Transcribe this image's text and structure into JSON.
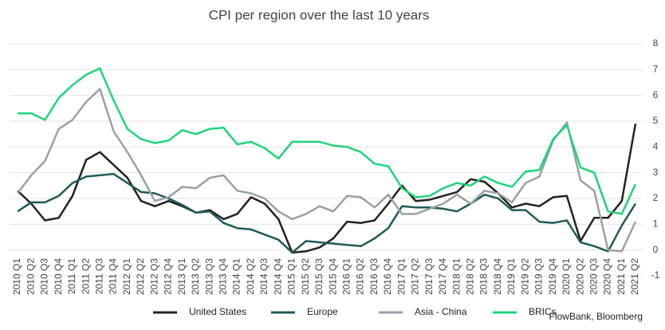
{
  "chart_data": {
    "type": "line",
    "title": "CPI per region over the last 10 years",
    "source": "FlowBank, Bloomberg",
    "categories": [
      "2010 Q1",
      "2010 Q2",
      "2010 Q3",
      "2010 Q4",
      "2011 Q1",
      "2011 Q2",
      "2011 Q3",
      "2011 Q4",
      "2012 Q1",
      "2012 Q2",
      "2012 Q3",
      "2012 Q4",
      "2013 Q1",
      "2013 Q2",
      "2013 Q3",
      "2013 Q4",
      "2014 Q1",
      "2014 Q2",
      "2014 Q3",
      "2014 Q4",
      "2015 Q1",
      "2015 Q2",
      "2015 Q3",
      "2015 Q4",
      "2016 Q1",
      "2016 Q2",
      "2016 Q3",
      "2016 Q4",
      "2017 Q1",
      "2017 Q2",
      "2017 Q3",
      "2017 Q4",
      "2018 Q1",
      "2018 Q2",
      "2018 Q3",
      "2018 Q4",
      "2019 Q1",
      "2019 Q2",
      "2019 Q3",
      "2019 Q4",
      "2020 Q1",
      "2020 Q2",
      "2020 Q3",
      "2020 Q4",
      "2021 Q1",
      "2021 Q2"
    ],
    "series": [
      {
        "name": "United States",
        "color": "#222222",
        "values": [
          2.3,
          1.8,
          1.15,
          1.25,
          2.1,
          3.5,
          3.8,
          3.3,
          2.8,
          1.9,
          1.7,
          1.9,
          1.7,
          1.45,
          1.55,
          1.2,
          1.4,
          2.05,
          1.8,
          1.2,
          -0.1,
          -0.05,
          0.1,
          0.45,
          1.1,
          1.05,
          1.15,
          1.8,
          2.5,
          1.9,
          1.95,
          2.1,
          2.25,
          2.75,
          2.65,
          2.2,
          1.65,
          1.8,
          1.7,
          2.05,
          2.1,
          0.35,
          1.25,
          1.25,
          1.9,
          4.9
        ]
      },
      {
        "name": "Europe",
        "color": "#1f5c55",
        "values": [
          1.5,
          1.85,
          1.85,
          2.1,
          2.6,
          2.85,
          2.9,
          2.95,
          2.6,
          2.25,
          2.2,
          2.0,
          1.75,
          1.45,
          1.5,
          1.05,
          0.85,
          0.8,
          0.6,
          0.4,
          -0.1,
          0.35,
          0.3,
          0.25,
          0.2,
          0.15,
          0.45,
          0.85,
          1.7,
          1.65,
          1.65,
          1.6,
          1.5,
          1.8,
          2.15,
          2.0,
          1.55,
          1.55,
          1.1,
          1.05,
          1.15,
          0.3,
          0.15,
          -0.05,
          0.95,
          1.8
        ]
      },
      {
        "name": "Asia - China",
        "color": "#9aa0a6",
        "values": [
          2.2,
          2.9,
          3.45,
          4.7,
          5.05,
          5.75,
          6.25,
          4.6,
          3.8,
          2.9,
          1.9,
          2.05,
          2.45,
          2.4,
          2.8,
          2.9,
          2.3,
          2.2,
          2.0,
          1.5,
          1.2,
          1.4,
          1.7,
          1.5,
          2.1,
          2.05,
          1.65,
          2.15,
          1.4,
          1.4,
          1.6,
          1.8,
          2.15,
          1.8,
          2.3,
          2.2,
          1.85,
          2.6,
          2.85,
          4.25,
          4.95,
          2.7,
          2.3,
          0.0,
          -0.05,
          1.1
        ]
      },
      {
        "name": "BRICs",
        "color": "#1fd47a",
        "values": [
          5.3,
          5.3,
          5.05,
          5.9,
          6.4,
          6.8,
          7.05,
          5.8,
          4.7,
          4.3,
          4.15,
          4.25,
          4.65,
          4.5,
          4.7,
          4.75,
          4.1,
          4.2,
          3.95,
          3.55,
          4.2,
          4.2,
          4.2,
          4.05,
          4.0,
          3.8,
          3.35,
          3.25,
          2.4,
          2.05,
          2.1,
          2.4,
          2.6,
          2.5,
          2.85,
          2.6,
          2.45,
          3.05,
          3.1,
          4.3,
          4.85,
          3.2,
          3.0,
          1.5,
          1.4,
          2.55
        ]
      }
    ],
    "ylim": [
      -1,
      8
    ],
    "yticks": [
      -1,
      0,
      1,
      2,
      3,
      4,
      5,
      6,
      7,
      8
    ],
    "grid": true,
    "legend": "bottom"
  }
}
